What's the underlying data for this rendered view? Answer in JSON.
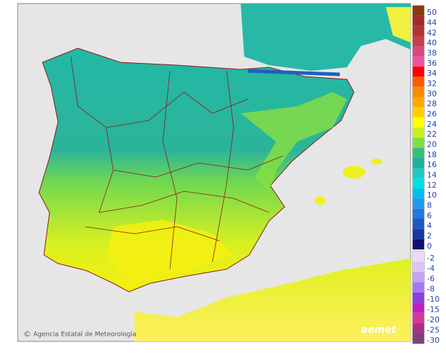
{
  "legend": {
    "upper": [
      {
        "value": 50,
        "color": "#8b3a12"
      },
      {
        "value": 44,
        "color": "#a52a2a"
      },
      {
        "value": 42,
        "color": "#b83232"
      },
      {
        "value": 40,
        "color": "#c8404a"
      },
      {
        "value": 38,
        "color": "#d8487a"
      },
      {
        "value": 36,
        "color": "#f050a8"
      },
      {
        "value": 34,
        "color": "#ff0000"
      },
      {
        "value": 32,
        "color": "#ff5a00"
      },
      {
        "value": 30,
        "color": "#ff8c00"
      },
      {
        "value": 28,
        "color": "#ffa800"
      },
      {
        "value": 26,
        "color": "#ffd000"
      },
      {
        "value": 24,
        "color": "#ffff00"
      },
      {
        "value": 22,
        "color": "#c8f020"
      },
      {
        "value": 20,
        "color": "#80e040"
      },
      {
        "value": 18,
        "color": "#38c078"
      },
      {
        "value": 16,
        "color": "#20b0a0"
      },
      {
        "value": 14,
        "color": "#20c8c0"
      },
      {
        "value": 12,
        "color": "#00e0e0"
      },
      {
        "value": 10,
        "color": "#00c0f0"
      },
      {
        "value": 8,
        "color": "#2098f0"
      },
      {
        "value": 6,
        "color": "#2078e0"
      },
      {
        "value": 4,
        "color": "#2058c0"
      },
      {
        "value": 2,
        "color": "#1838a0"
      },
      {
        "value": 0,
        "color": "#101070"
      }
    ],
    "lower": [
      {
        "value": -2,
        "color": "#eadcf8"
      },
      {
        "value": -4,
        "color": "#dcc4f4"
      },
      {
        "value": -6,
        "color": "#c4a4f0"
      },
      {
        "value": -8,
        "color": "#a878f0"
      },
      {
        "value": -10,
        "color": "#8c40e0"
      },
      {
        "value": -15,
        "color": "#c020c0"
      },
      {
        "value": -20,
        "color": "#d83898"
      },
      {
        "value": -25,
        "color": "#a83088"
      },
      {
        "value": -30,
        "color": "#804080"
      }
    ]
  },
  "footer": {
    "copyright": "©",
    "agency": "Agencia Estatal de Meteorología",
    "logo": "aemet"
  }
}
